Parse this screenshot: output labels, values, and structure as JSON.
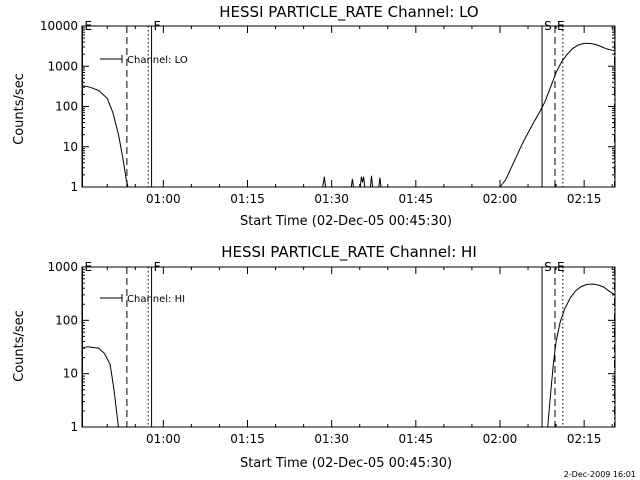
{
  "footer": {
    "timestamp": "2-Dec-2009 16:01"
  },
  "chart_data": [
    {
      "type": "line",
      "title": "HESSI PARTICLE_RATE Channel: LO",
      "xlabel": "Start Time (02-Dec-05 00:45:30)",
      "ylabel": "Counts/sec",
      "yscale": "log",
      "xlim": [
        45.5,
        140.5
      ],
      "ylim": [
        1,
        10000
      ],
      "xticks": [
        60,
        75,
        90,
        105,
        120,
        135
      ],
      "xtick_labels": [
        "01:00",
        "01:15",
        "01:30",
        "01:45",
        "02:00",
        "02:15"
      ],
      "yticks": [
        1,
        10,
        100,
        1000,
        10000
      ],
      "ytick_labels": [
        "1",
        "10",
        "100",
        "1000",
        "10000"
      ],
      "legend": {
        "placement": "top-left",
        "entries": [
          "Channel: LO"
        ]
      },
      "markers": [
        {
          "label": "E",
          "x": 45.5,
          "style": "solid"
        },
        {
          "label": "",
          "x": 53.5,
          "style": "dashed"
        },
        {
          "label": "",
          "x": 57.3,
          "style": "dotted"
        },
        {
          "label": "F",
          "x": 57.9,
          "style": "solid"
        },
        {
          "label": "S",
          "x": 127.5,
          "style": "solid"
        },
        {
          "label": "E",
          "x": 129.8,
          "style": "dashed"
        },
        {
          "label": "",
          "x": 131.2,
          "style": "dotted"
        },
        {
          "label": "",
          "x": 140.5,
          "style": "dashdot"
        }
      ],
      "series": [
        {
          "name": "Channel: LO",
          "segments": [
            [
              [
                45.5,
                330
              ],
              [
                47,
                300
              ],
              [
                48.5,
                250
              ],
              [
                50,
                160
              ],
              [
                51,
                70
              ],
              [
                52,
                20
              ],
              [
                52.8,
                5
              ],
              [
                53.4,
                1.5
              ],
              [
                53.7,
                1
              ]
            ],
            [
              [
                88.4,
                1
              ],
              [
                88.7,
                1.8
              ],
              [
                88.9,
                1
              ]
            ],
            [
              [
                93.5,
                1
              ],
              [
                93.7,
                1.6
              ],
              [
                93.9,
                1
              ]
            ],
            [
              [
                95.1,
                1
              ],
              [
                95.3,
                1.8
              ],
              [
                95.5,
                1.3
              ],
              [
                95.7,
                1.8
              ],
              [
                95.9,
                1
              ]
            ],
            [
              [
                96.9,
                1
              ],
              [
                97.1,
                1.9
              ],
              [
                97.3,
                1
              ]
            ],
            [
              [
                98.4,
                1
              ],
              [
                98.6,
                1.7
              ],
              [
                98.8,
                1
              ]
            ],
            [
              [
                120,
                1
              ],
              [
                121,
                1.5
              ],
              [
                122,
                3
              ],
              [
                123,
                6
              ],
              [
                124,
                12
              ],
              [
                125,
                22
              ],
              [
                126,
                40
              ],
              [
                127,
                70
              ],
              [
                128,
                130
              ],
              [
                129,
                300
              ],
              [
                130,
                700
              ],
              [
                131,
                1300
              ],
              [
                132,
                2000
              ],
              [
                133,
                2800
              ],
              [
                134,
                3400
              ],
              [
                135,
                3700
              ],
              [
                136,
                3700
              ],
              [
                137,
                3500
              ],
              [
                138,
                3100
              ],
              [
                139,
                2700
              ],
              [
                140,
                2500
              ],
              [
                140.5,
                2400
              ]
            ]
          ]
        }
      ]
    },
    {
      "type": "line",
      "title": "HESSI PARTICLE_RATE Channel: HI",
      "xlabel": "Start Time (02-Dec-05 00:45:30)",
      "ylabel": "Counts/sec",
      "yscale": "log",
      "xlim": [
        45.5,
        140.5
      ],
      "ylim": [
        1,
        1000
      ],
      "xticks": [
        60,
        75,
        90,
        105,
        120,
        135
      ],
      "xtick_labels": [
        "01:00",
        "01:15",
        "01:30",
        "01:45",
        "02:00",
        "02:15"
      ],
      "yticks": [
        1,
        10,
        100,
        1000
      ],
      "ytick_labels": [
        "1",
        "10",
        "100",
        "1000"
      ],
      "legend": {
        "placement": "top-left",
        "entries": [
          "Channel: HI"
        ]
      },
      "markers": [
        {
          "label": "E",
          "x": 45.5,
          "style": "solid"
        },
        {
          "label": "",
          "x": 53.5,
          "style": "dashed"
        },
        {
          "label": "",
          "x": 57.3,
          "style": "dotted"
        },
        {
          "label": "F",
          "x": 57.9,
          "style": "solid"
        },
        {
          "label": "S",
          "x": 127.5,
          "style": "solid"
        },
        {
          "label": "E",
          "x": 129.8,
          "style": "dashed"
        },
        {
          "label": "",
          "x": 131.2,
          "style": "dotted"
        },
        {
          "label": "",
          "x": 140.5,
          "style": "dashdot"
        }
      ],
      "series": [
        {
          "name": "Channel: HI",
          "segments": [
            [
              [
                45.5,
                30
              ],
              [
                46.5,
                32
              ],
              [
                47.5,
                31
              ],
              [
                48.5,
                30
              ],
              [
                49.5,
                24
              ],
              [
                50.5,
                15
              ],
              [
                51.2,
                5
              ],
              [
                51.8,
                1.5
              ],
              [
                52,
                1
              ]
            ],
            [
              [
                128.5,
                1
              ],
              [
                129,
                4
              ],
              [
                129.5,
                15
              ],
              [
                130,
                40
              ],
              [
                130.7,
                90
              ],
              [
                131.5,
                160
              ],
              [
                132.5,
                260
              ],
              [
                133.5,
                360
              ],
              [
                134.5,
                430
              ],
              [
                135.5,
                470
              ],
              [
                136.5,
                480
              ],
              [
                137.5,
                460
              ],
              [
                138.5,
                420
              ],
              [
                139.5,
                350
              ],
              [
                140.5,
                300
              ]
            ]
          ]
        }
      ]
    }
  ]
}
